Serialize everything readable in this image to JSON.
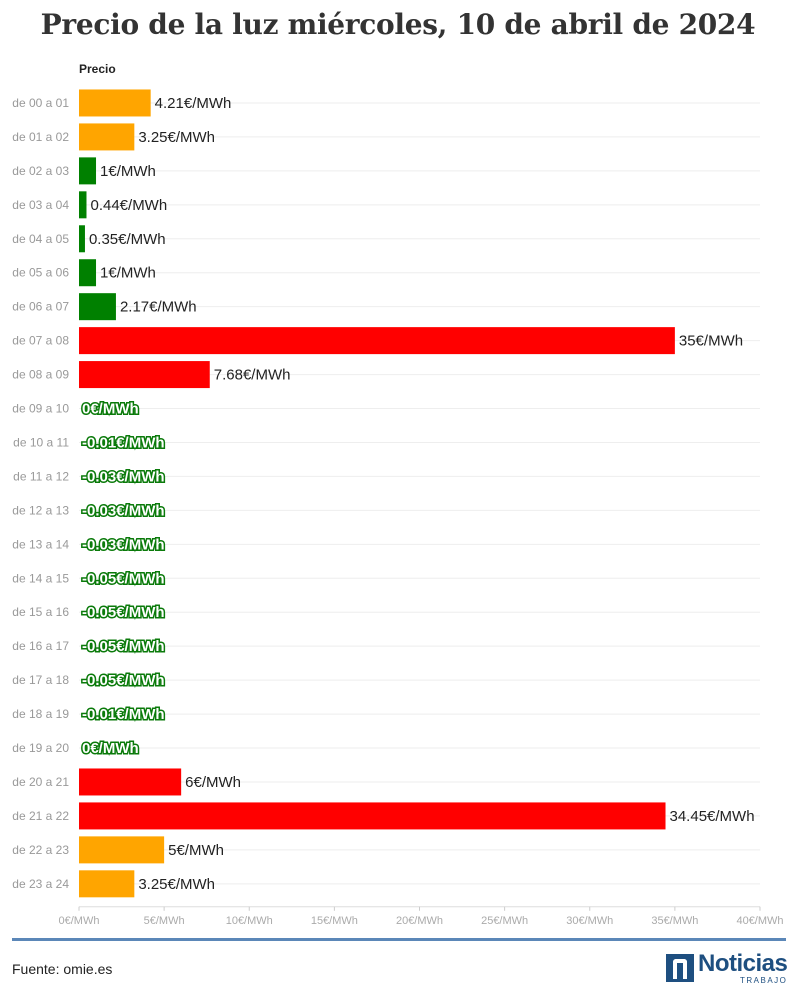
{
  "header": {
    "title": "Precio de la luz miércoles, 10 de abril de 2024"
  },
  "footer": {
    "source": "Fuente: omie.es",
    "logo_name": "Noticias",
    "logo_sub": "TRABAJO"
  },
  "chart_data": {
    "type": "bar",
    "orientation": "horizontal",
    "title": "Precio de la luz miércoles, 10 de abril de 2024",
    "column_header": "Precio",
    "unit_suffix": "€/MWh",
    "xlim": [
      0,
      40
    ],
    "x_ticks": [
      "0€/MWh",
      "5€/MWh",
      "10€/MWh",
      "15€/MWh",
      "20€/MWh",
      "25€/MWh",
      "30€/MWh",
      "35€/MWh",
      "40€/MWh"
    ],
    "grid": true,
    "colors": {
      "low": "#008000",
      "mid": "#ffa500",
      "high": "#ff0000"
    },
    "categories": [
      "de 00 a 01",
      "de 01 a 02",
      "de 02 a 03",
      "de 03 a 04",
      "de 04 a 05",
      "de 05 a 06",
      "de 06 a 07",
      "de 07 a 08",
      "de 08 a 09",
      "de 09 a 10",
      "de 10 a 11",
      "de 11 a 12",
      "de 12 a 13",
      "de 13 a 14",
      "de 14 a 15",
      "de 15 a 16",
      "de 16 a 17",
      "de 17 a 18",
      "de 18 a 19",
      "de 19 a 20",
      "de 20 a 21",
      "de 21 a 22",
      "de 22 a 23",
      "de 23 a 24"
    ],
    "values": [
      4.21,
      3.25,
      1,
      0.44,
      0.35,
      1,
      2.17,
      35,
      7.68,
      0,
      -0.01,
      -0.03,
      -0.03,
      -0.03,
      -0.05,
      -0.05,
      -0.05,
      -0.05,
      -0.01,
      0,
      6,
      34.45,
      5,
      3.25
    ],
    "labels": [
      "4.21€/MWh",
      "3.25€/MWh",
      "1€/MWh",
      "0.44€/MWh",
      "0.35€/MWh",
      "1€/MWh",
      "2.17€/MWh",
      "35€/MWh",
      "7.68€/MWh",
      "0€/MWh",
      "-0.01€/MWh",
      "-0.03€/MWh",
      "-0.03€/MWh",
      "-0.03€/MWh",
      "-0.05€/MWh",
      "-0.05€/MWh",
      "-0.05€/MWh",
      "-0.05€/MWh",
      "-0.01€/MWh",
      "0€/MWh",
      "6€/MWh",
      "34.45€/MWh",
      "5€/MWh",
      "3.25€/MWh"
    ],
    "bar_colors": [
      "mid",
      "mid",
      "low",
      "low",
      "low",
      "low",
      "low",
      "high",
      "high",
      "low",
      "low",
      "low",
      "low",
      "low",
      "low",
      "low",
      "low",
      "low",
      "low",
      "low",
      "high",
      "high",
      "mid",
      "mid"
    ]
  }
}
